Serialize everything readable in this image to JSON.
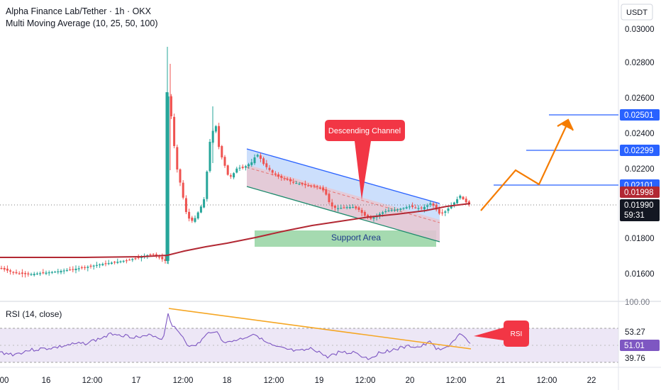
{
  "header": {
    "symbol_line": "Alpha Finance Lab/Tether · 1h · OKX",
    "indicator_line": "Multi Moving Average (10, 25, 50, 100)"
  },
  "currency_button": "USDT",
  "rsi_label": "RSI (14, close)",
  "countdown": "59:31",
  "annotations": {
    "descending_channel": "Descending Channel",
    "support_area": "Support Area",
    "rsi_callout": "RSI"
  },
  "colors": {
    "up": "#26a69a",
    "down": "#ef5350",
    "ma": "#b22833",
    "level_line": "#2962ff",
    "channel_fill": "#bbd4fb",
    "support_fill": "#7fca8e",
    "projection": "#f57c00",
    "rsi_line": "#7e57c2",
    "rsi_trend": "#f5a623",
    "callout": "#f23645"
  },
  "chart_data": {
    "type": "candlestick",
    "ylim": [
      0.0148,
      0.0305
    ],
    "price_ticks": [
      "0.03000",
      "0.02800",
      "0.02600",
      "0.02400",
      "0.02200",
      "0.01800",
      "0.01600"
    ],
    "x_ticks": [
      "00",
      "16",
      "12:00",
      "17",
      "12:00",
      "18",
      "12:00",
      "19",
      "12:00",
      "20",
      "12:00",
      "21",
      "12:00",
      "22"
    ],
    "price_labels": [
      {
        "text": "0.02501",
        "value": 0.02501,
        "kind": "level"
      },
      {
        "text": "0.02299",
        "value": 0.02299,
        "kind": "level"
      },
      {
        "text": "0.02101",
        "value": 0.02101,
        "kind": "level"
      },
      {
        "text": "0.01998",
        "value": 0.01998,
        "kind": "ma"
      },
      {
        "text": "0.01990",
        "value": 0.0199,
        "kind": "last"
      }
    ],
    "target_levels": [
      0.02501,
      0.02299,
      0.02101
    ],
    "current_price": 0.0199,
    "ma_value": 0.01998,
    "rsi": {
      "ylim": [
        20,
        100
      ],
      "ticks": [
        "100.00",
        "53.27",
        "51.01",
        "39.76"
      ],
      "band": [
        70,
        30
      ],
      "current": 51.01
    }
  }
}
